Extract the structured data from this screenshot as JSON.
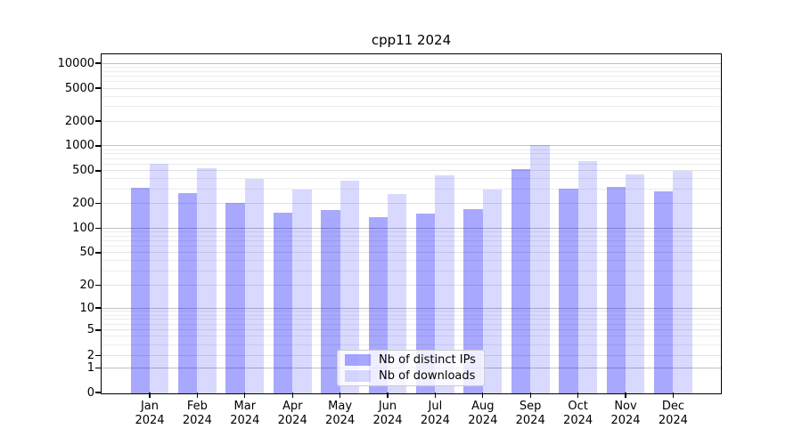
{
  "title": "cpp11 2024",
  "chart_data": {
    "type": "bar",
    "title": "cpp11 2024",
    "categories": [
      "Jan 2024",
      "Feb 2024",
      "Mar 2024",
      "Apr 2024",
      "May 2024",
      "Jun 2024",
      "Jul 2024",
      "Aug 2024",
      "Sep 2024",
      "Oct 2024",
      "Nov 2024",
      "Dec 2024"
    ],
    "series": [
      {
        "name": "Nb of distinct IPs",
        "color": "rgba(0,0,255,0.34)",
        "values": [
          322,
          272,
          208,
          158,
          172,
          140,
          157,
          177,
          536,
          314,
          328,
          290
        ]
      },
      {
        "name": "Nb of downloads",
        "color": "rgba(0,0,255,0.15)",
        "values": [
          630,
          545,
          405,
          300,
          385,
          266,
          447,
          300,
          1060,
          663,
          458,
          510
        ]
      }
    ],
    "yscale": "symlog",
    "yticks": [
      0,
      1,
      2,
      5,
      10,
      20,
      50,
      100,
      200,
      500,
      1000,
      2000,
      5000,
      10000
    ],
    "ylim": [
      0,
      12800
    ],
    "grid": "both",
    "legend_position": "lower center"
  }
}
